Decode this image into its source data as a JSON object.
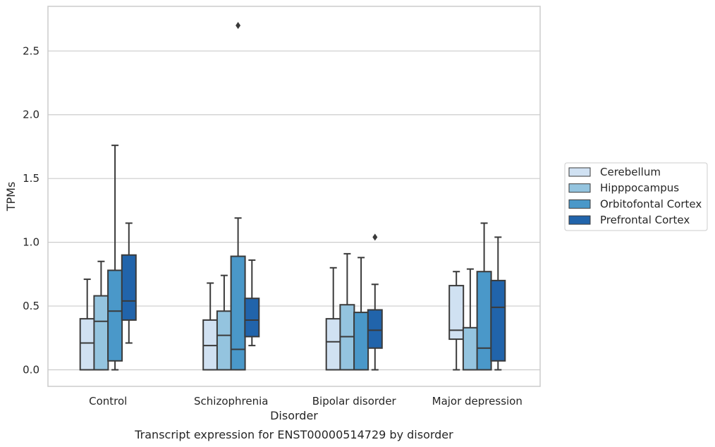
{
  "caption": "Transcript expression for ENST00000514729 by disorder",
  "chart_data": {
    "type": "box",
    "title": "",
    "xlabel": "Disorder",
    "ylabel": "TPMs",
    "categories": [
      "Control",
      "Schizophrenia",
      "Bipolar disorder",
      "Major depression"
    ],
    "ylim": [
      -0.13,
      2.85
    ],
    "yticks": [
      "0.0",
      "0.5",
      "1.0",
      "1.5",
      "2.0",
      "2.5"
    ],
    "grid": "horizontal",
    "legend_position": "right",
    "series": [
      {
        "name": "Cerebellum",
        "color": "#d0e1f2",
        "boxes": [
          {
            "min": 0.0,
            "q1": 0.0,
            "median": 0.21,
            "q3": 0.4,
            "max": 0.71,
            "outliers": []
          },
          {
            "min": 0.0,
            "q1": 0.0,
            "median": 0.19,
            "q3": 0.39,
            "max": 0.68,
            "outliers": []
          },
          {
            "min": 0.0,
            "q1": 0.0,
            "median": 0.22,
            "q3": 0.4,
            "max": 0.8,
            "outliers": []
          },
          {
            "min": 0.0,
            "q1": 0.24,
            "median": 0.31,
            "q3": 0.66,
            "max": 0.77,
            "outliers": []
          }
        ]
      },
      {
        "name": "Hipppocampus",
        "color": "#94c4df",
        "boxes": [
          {
            "min": 0.0,
            "q1": 0.0,
            "median": 0.38,
            "q3": 0.58,
            "max": 0.85,
            "outliers": []
          },
          {
            "min": 0.0,
            "q1": 0.0,
            "median": 0.27,
            "q3": 0.46,
            "max": 0.74,
            "outliers": []
          },
          {
            "min": 0.0,
            "q1": 0.0,
            "median": 0.26,
            "q3": 0.51,
            "max": 0.91,
            "outliers": []
          },
          {
            "min": 0.0,
            "q1": 0.0,
            "median": 0.0,
            "q3": 0.33,
            "max": 0.79,
            "outliers": []
          }
        ]
      },
      {
        "name": "Orbitofontal Cortex",
        "color": "#4a98c9",
        "boxes": [
          {
            "min": 0.0,
            "q1": 0.07,
            "median": 0.46,
            "q3": 0.78,
            "max": 1.76,
            "outliers": []
          },
          {
            "min": 0.0,
            "q1": 0.0,
            "median": 0.16,
            "q3": 0.89,
            "max": 1.19,
            "outliers": [
              2.7
            ]
          },
          {
            "min": 0.0,
            "q1": 0.0,
            "median": 0.0,
            "q3": 0.45,
            "max": 0.88,
            "outliers": []
          },
          {
            "min": 0.0,
            "q1": 0.0,
            "median": 0.17,
            "q3": 0.77,
            "max": 1.15,
            "outliers": []
          }
        ]
      },
      {
        "name": "Prefrontal Cortex",
        "color": "#2164ab",
        "boxes": [
          {
            "min": 0.21,
            "q1": 0.39,
            "median": 0.54,
            "q3": 0.9,
            "max": 1.15,
            "outliers": []
          },
          {
            "min": 0.19,
            "q1": 0.26,
            "median": 0.39,
            "q3": 0.56,
            "max": 0.86,
            "outliers": []
          },
          {
            "min": 0.0,
            "q1": 0.17,
            "median": 0.31,
            "q3": 0.47,
            "max": 0.67,
            "outliers": [
              1.04
            ]
          },
          {
            "min": 0.0,
            "q1": 0.07,
            "median": 0.49,
            "q3": 0.7,
            "max": 1.04,
            "outliers": []
          }
        ]
      }
    ]
  }
}
